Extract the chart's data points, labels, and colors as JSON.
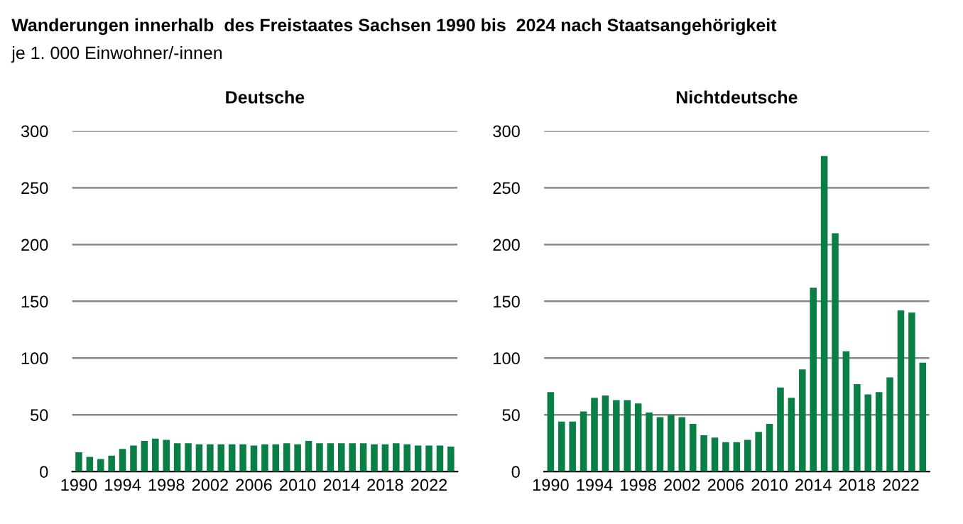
{
  "chart_data": [
    {
      "type": "other",
      "title": "Wanderungen innerhalb  des Freistaates Sachsen 1990 bis  2024 nach Staatsangehörigkeit",
      "subtitle": "je 1. 000 Einwohner/-innen"
    },
    {
      "type": "bar",
      "title": "Deutsche",
      "categories": [
        "1990",
        null,
        null,
        null,
        "1994",
        null,
        null,
        null,
        "1998",
        null,
        null,
        null,
        "2002",
        null,
        null,
        null,
        "2006",
        null,
        null,
        null,
        "2010",
        null,
        null,
        null,
        "2014",
        null,
        null,
        null,
        "2018",
        null,
        null,
        null,
        "2022",
        null,
        null
      ],
      "values": [
        17,
        13,
        11,
        14,
        20,
        23,
        27,
        29,
        28,
        25,
        25,
        24,
        24,
        24,
        24,
        24,
        23,
        24,
        24,
        25,
        24,
        27,
        25,
        25,
        25,
        25,
        25,
        24,
        24,
        25,
        24,
        23,
        23,
        23,
        22
      ],
      "color": "#0a7f45",
      "ylim": [
        0,
        300
      ],
      "yticks": [
        0,
        50,
        100,
        150,
        200,
        250,
        300
      ],
      "grid": "y"
    },
    {
      "type": "bar",
      "title": "Nichtdeutsche",
      "categories": [
        "1990",
        null,
        null,
        null,
        "1994",
        null,
        null,
        null,
        "1998",
        null,
        null,
        null,
        "2002",
        null,
        null,
        null,
        "2006",
        null,
        null,
        null,
        "2010",
        null,
        null,
        null,
        "2014",
        null,
        null,
        null,
        "2018",
        null,
        null,
        null,
        "2022",
        null,
        null
      ],
      "values": [
        70,
        44,
        44,
        53,
        65,
        67,
        63,
        63,
        60,
        52,
        48,
        50,
        48,
        42,
        32,
        30,
        26,
        26,
        28,
        35,
        42,
        74,
        65,
        90,
        162,
        278,
        210,
        106,
        77,
        68,
        70,
        83,
        142,
        140,
        96
      ],
      "color": "#0a7f45",
      "ylim": [
        0,
        300
      ],
      "yticks": [
        0,
        50,
        100,
        150,
        200,
        250,
        300
      ],
      "grid": "y"
    }
  ]
}
